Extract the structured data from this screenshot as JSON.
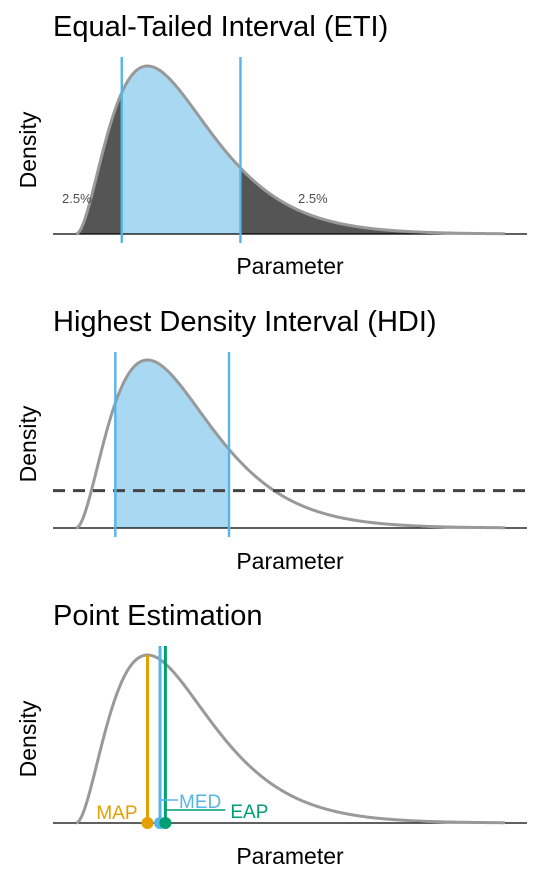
{
  "colors": {
    "curve": "#999999",
    "fill_inner": "#a9d8f3",
    "fill_tail": "#555555",
    "interval_line": "#56b4e9",
    "baseline": "#000000",
    "threshold": "#444444",
    "map": "#e69f00",
    "med": "#56b4e9",
    "eap": "#009e73"
  },
  "chart_data": [
    {
      "type": "area",
      "title": "Equal-Tailed Interval (ETI)",
      "xlabel": "Parameter",
      "ylabel": "Density",
      "interval": [
        1.28,
        4.6
      ],
      "tail_labels": [
        "2.5%",
        "2.5%"
      ],
      "grid": false,
      "legend": "none"
    },
    {
      "type": "area",
      "title": "Highest Density Interval (HDI)",
      "xlabel": "Parameter",
      "ylabel": "Density",
      "interval": [
        1.1,
        4.28
      ],
      "threshold_density": 0.06,
      "grid": false,
      "legend": "none"
    },
    {
      "type": "line",
      "title": "Point Estimation",
      "xlabel": "Parameter",
      "ylabel": "Density",
      "estimates": [
        {
          "name": "MAP",
          "value": 2.0
        },
        {
          "name": "MED",
          "value": 2.35
        },
        {
          "name": "EAP",
          "value": 2.5
        }
      ],
      "grid": false,
      "legend": "none"
    }
  ]
}
